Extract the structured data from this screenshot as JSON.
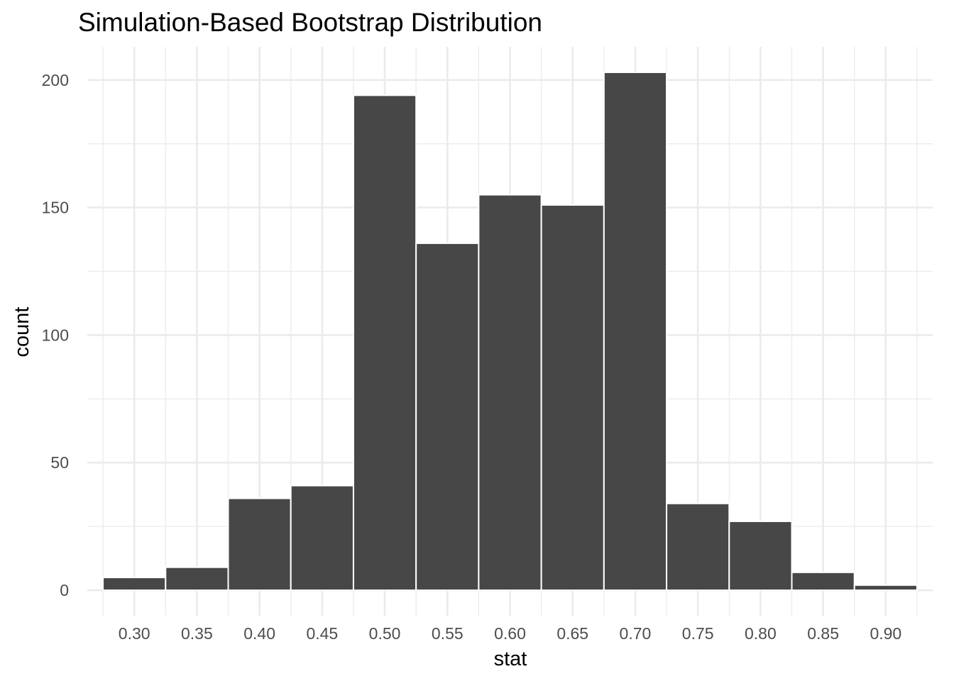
{
  "chart_data": {
    "type": "bar",
    "title": "Simulation-Based Bootstrap Distribution",
    "xlabel": "stat",
    "ylabel": "count",
    "bin_width": 0.05,
    "bins": [
      {
        "center": 0.3,
        "count": 5
      },
      {
        "center": 0.35,
        "count": 9
      },
      {
        "center": 0.4,
        "count": 36
      },
      {
        "center": 0.45,
        "count": 41
      },
      {
        "center": 0.5,
        "count": 194
      },
      {
        "center": 0.55,
        "count": 136
      },
      {
        "center": 0.6,
        "count": 155
      },
      {
        "center": 0.65,
        "count": 151
      },
      {
        "center": 0.7,
        "count": 203
      },
      {
        "center": 0.75,
        "count": 34
      },
      {
        "center": 0.8,
        "count": 27
      },
      {
        "center": 0.85,
        "count": 7
      },
      {
        "center": 0.9,
        "count": 2
      }
    ],
    "x_ticks": [
      "0.30",
      "0.35",
      "0.40",
      "0.45",
      "0.50",
      "0.55",
      "0.60",
      "0.65",
      "0.70",
      "0.75",
      "0.80",
      "0.85",
      "0.90"
    ],
    "y_ticks": [
      "0",
      "50",
      "100",
      "150",
      "200"
    ],
    "xlim": [
      0.2625,
      0.9375
    ],
    "ylim": [
      -10,
      213
    ],
    "grid": true,
    "legend": "none"
  }
}
